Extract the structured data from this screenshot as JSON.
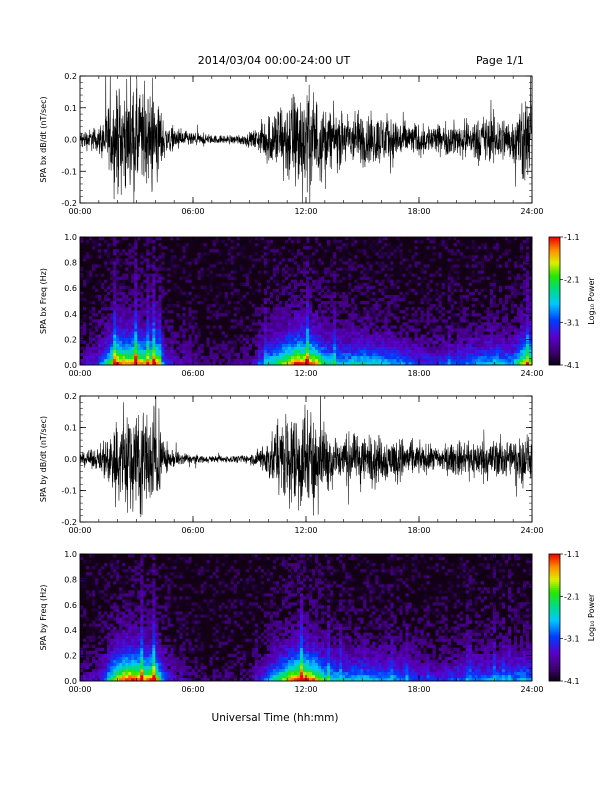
{
  "header": {
    "title": "2014/03/04  00:00-24:00 UT",
    "page": "Page 1/1"
  },
  "xaxis": {
    "label": "Universal Time (hh:mm)",
    "ticks": [
      "00:00",
      "06:00",
      "12:00",
      "18:00",
      "24:00"
    ]
  },
  "colorbar": {
    "label": "Log₁₀ Power",
    "ticks": [
      "-1.1",
      "-2.1",
      "-3.1",
      "-4.1"
    ]
  },
  "chart_data": [
    {
      "type": "line",
      "ylabel": "SPA bx dB/dt (nT/sec)",
      "xlim": [
        0,
        24
      ],
      "ylim": [
        -0.2,
        0.2
      ],
      "yticks": [
        "0.2",
        "0.1",
        "0.0",
        "-0.1",
        "-0.2"
      ],
      "yticks_values": [
        0.2,
        0.1,
        0.0,
        -0.1,
        -0.2
      ],
      "envelope": {
        "hours": [
          0,
          1,
          1.5,
          2,
          2.5,
          3,
          3.5,
          4,
          4.5,
          5,
          6,
          7,
          8,
          9,
          9.5,
          10,
          10.5,
          11,
          11.5,
          12,
          12.5,
          13,
          14,
          15,
          16,
          17,
          18,
          19,
          20,
          21,
          22,
          23,
          23.5,
          24
        ],
        "amplitude": [
          0.04,
          0.06,
          0.15,
          0.25,
          0.22,
          0.25,
          0.2,
          0.24,
          0.08,
          0.05,
          0.03,
          0.02,
          0.02,
          0.03,
          0.06,
          0.12,
          0.16,
          0.2,
          0.25,
          0.25,
          0.22,
          0.15,
          0.12,
          0.13,
          0.12,
          0.1,
          0.07,
          0.07,
          0.08,
          0.1,
          0.12,
          0.1,
          0.2,
          0.2
        ]
      }
    },
    {
      "type": "heatmap",
      "ylabel": "SPA bx Freq (Hz)",
      "xlim": [
        0,
        24
      ],
      "ylim": [
        0.0,
        1.0
      ],
      "yticks": [
        "1.0",
        "0.8",
        "0.6",
        "0.4",
        "0.2",
        "0.0"
      ],
      "yticks_values": [
        1.0,
        0.8,
        0.6,
        0.4,
        0.2,
        0.0
      ],
      "zlim": [
        -4.1,
        -1.1
      ]
    },
    {
      "type": "line",
      "ylabel": "SPA by dB/dt (nT/sec)",
      "xlim": [
        0,
        24
      ],
      "ylim": [
        -0.2,
        0.2
      ],
      "yticks": [
        "0.2",
        "0.1",
        "0.0",
        "-0.1",
        "-0.2"
      ],
      "yticks_values": [
        0.2,
        0.1,
        0.0,
        -0.1,
        -0.2
      ],
      "envelope": {
        "hours": [
          0,
          1,
          1.5,
          2,
          2.5,
          3,
          3.5,
          4,
          4.5,
          5,
          6,
          7,
          8,
          9,
          9.5,
          10,
          10.5,
          11,
          11.5,
          12,
          12.5,
          13,
          14,
          15,
          16,
          17,
          18,
          19,
          20,
          21,
          22,
          23,
          23.5,
          24
        ],
        "amplitude": [
          0.03,
          0.05,
          0.12,
          0.22,
          0.25,
          0.25,
          0.22,
          0.24,
          0.07,
          0.04,
          0.02,
          0.015,
          0.015,
          0.02,
          0.05,
          0.1,
          0.15,
          0.2,
          0.25,
          0.25,
          0.22,
          0.15,
          0.11,
          0.12,
          0.11,
          0.1,
          0.07,
          0.06,
          0.08,
          0.09,
          0.1,
          0.09,
          0.12,
          0.1
        ]
      }
    },
    {
      "type": "heatmap",
      "ylabel": "SPA by Freq (Hz)",
      "xlim": [
        0,
        24
      ],
      "ylim": [
        0.0,
        1.0
      ],
      "yticks": [
        "1.0",
        "0.8",
        "0.6",
        "0.4",
        "0.2",
        "0.0"
      ],
      "yticks_values": [
        1.0,
        0.8,
        0.6,
        0.4,
        0.2,
        0.0
      ],
      "zlim": [
        -4.1,
        -1.1
      ]
    }
  ]
}
